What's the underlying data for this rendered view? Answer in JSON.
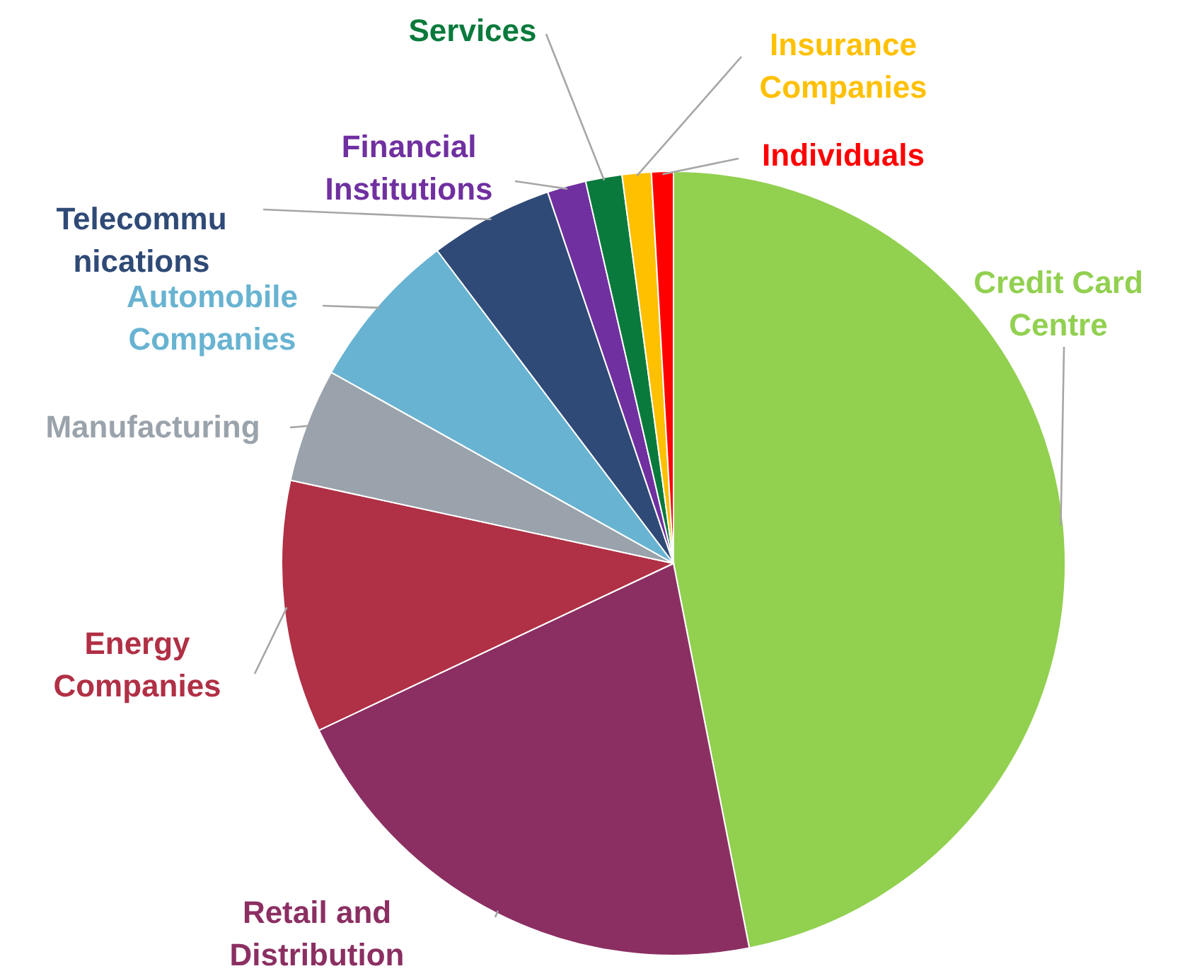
{
  "chart_data": {
    "type": "pie",
    "categories": [
      "Credit Card\nCentre",
      "Retail and\nDistribution",
      "Energy\nCompanies",
      "Manufacturing",
      "Automobile\nCompanies",
      "Telecommu\nnications",
      "Financial\nInstitutions",
      "Services",
      "Insurance\nCompanies",
      "Individuals"
    ],
    "values": [
      46.9,
      21.1,
      10.4,
      4.7,
      6.6,
      5.1,
      1.6,
      1.5,
      1.2,
      0.9
    ],
    "colors": [
      "#92d050",
      "#8b2f62",
      "#b03045",
      "#9aa3ab",
      "#68b3d1",
      "#2f4a76",
      "#7030a0",
      "#0a7a3c",
      "#ffc000",
      "#ff0000"
    ]
  }
}
